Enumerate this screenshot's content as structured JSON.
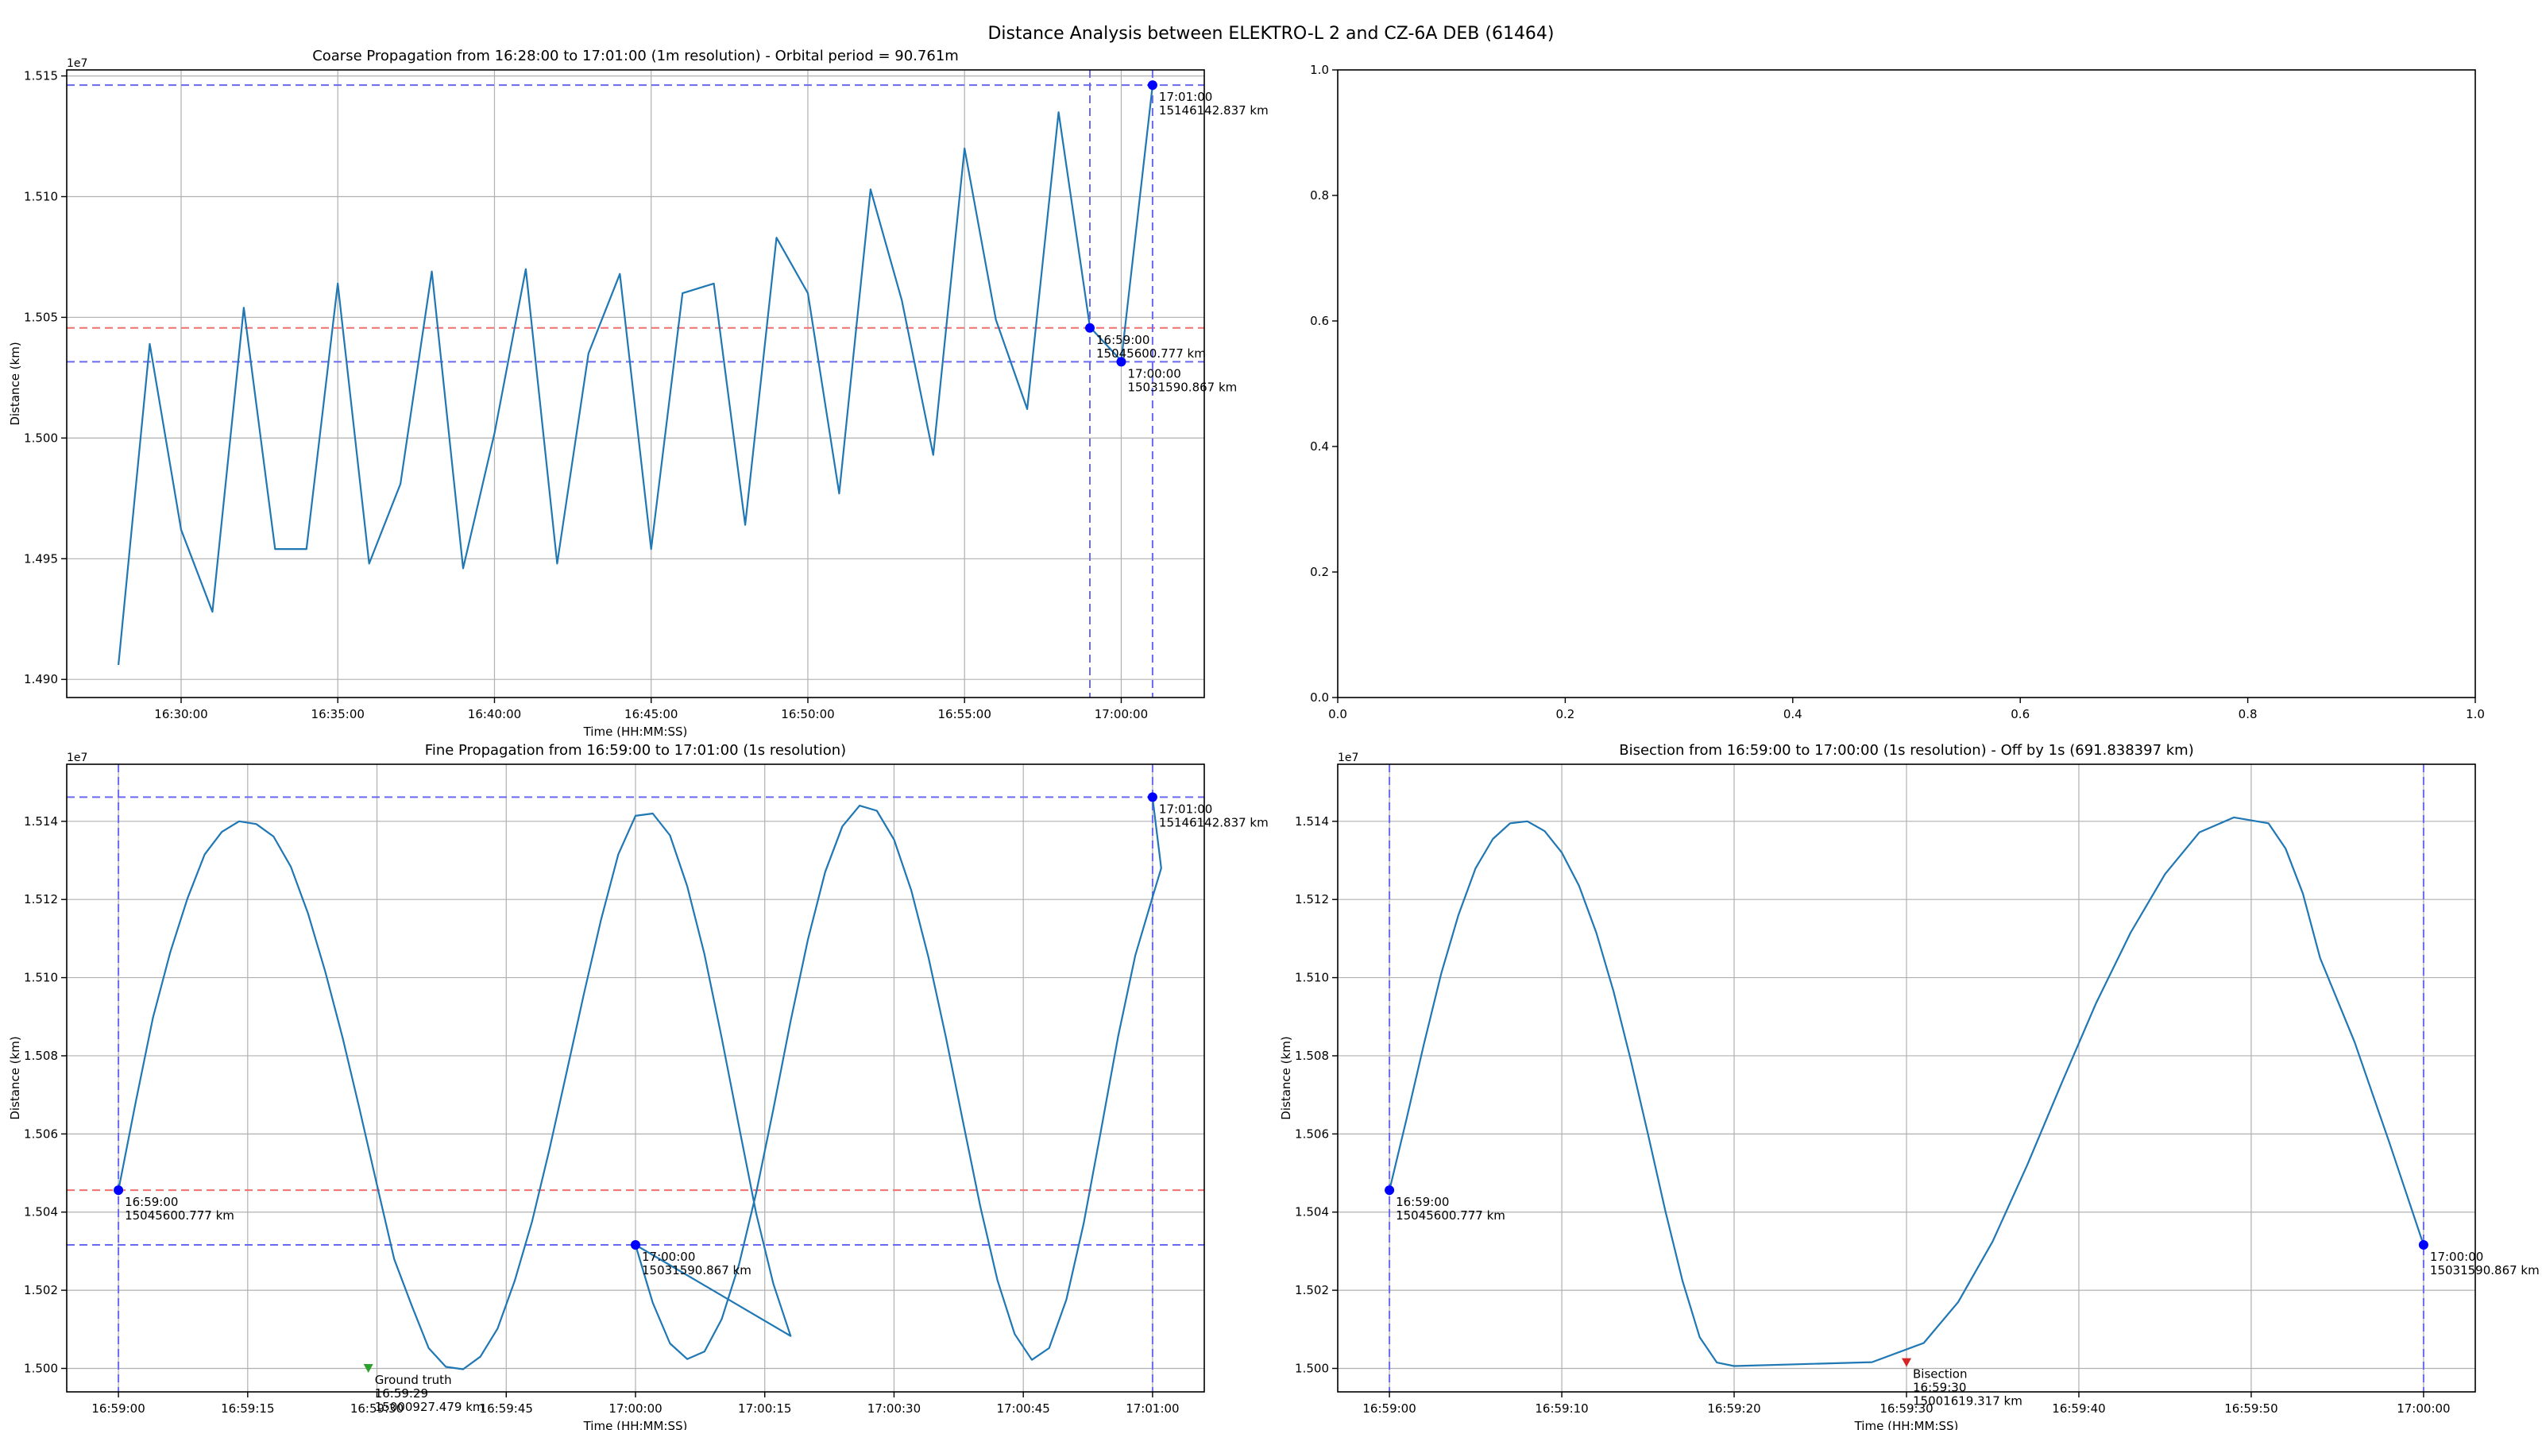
{
  "figure_title": "Distance Analysis between ELEKTRO-L 2 and CZ-6A DEB (61464)",
  "colors": {
    "line": "#1f77b4",
    "marker": "#0000ff",
    "guide_blue": "#6a6af0",
    "guide_red": "#f07070",
    "ground_truth": "#2ca02c",
    "bisection": "#d62728",
    "grid": "#b0b0b0"
  },
  "chart_data": [
    {
      "id": "coarse",
      "type": "line",
      "title": "Coarse Propagation from 16:28:00 to 17:01:00 (1m resolution) - Orbital period = 90.761m",
      "xlabel": "Time (HH:MM:SS)",
      "ylabel": "Distance (km)",
      "offset_label": "1e7",
      "xlim": [
        -1.65,
        34.65
      ],
      "ylim": [
        14.8925,
        15.1525
      ],
      "x_unit": "minutes after 16:28:00",
      "xticks": [
        2,
        7,
        12,
        17,
        22,
        27,
        32
      ],
      "xticklabels": [
        "16:30:00",
        "16:35:00",
        "16:40:00",
        "16:45:00",
        "16:50:00",
        "16:55:00",
        "17:00:00"
      ],
      "yticks": [
        14.9,
        14.95,
        15.0,
        15.05,
        15.1,
        15.15
      ],
      "yticklabels": [
        "1.490",
        "1.495",
        "1.500",
        "1.505",
        "1.510",
        "1.515"
      ],
      "series": [
        {
          "values": [
            14.906,
            15.039,
            14.962,
            14.928,
            15.054,
            14.954,
            14.954,
            15.064,
            14.948,
            14.981,
            15.069,
            14.946,
            15.002,
            15.07,
            14.948,
            15.035,
            15.068,
            14.954,
            15.06,
            15.064,
            14.964,
            15.083,
            15.06,
            14.977,
            15.103,
            15.057,
            14.993,
            15.12,
            15.049,
            15.012,
            15.135,
            15.046,
            15.032,
            15.146
          ]
        }
      ],
      "hlines": [
        {
          "y": 15.1462,
          "color": "blue"
        },
        {
          "y": 15.0456,
          "color": "red"
        },
        {
          "y": 15.0316,
          "color": "blue"
        }
      ],
      "vlines": [
        31,
        33
      ],
      "points": [
        {
          "x": 31,
          "y": 15.0456,
          "color": "blue",
          "labels": [
            "16:59:00",
            "15045600.777 km"
          ]
        },
        {
          "x": 32,
          "y": 15.0316,
          "color": "blue",
          "labels": [
            "17:00:00",
            "15031590.867 km"
          ]
        },
        {
          "x": 33,
          "y": 15.1462,
          "color": "blue",
          "labels": [
            "17:01:00",
            "15146142.837 km"
          ]
        }
      ]
    },
    {
      "id": "empty",
      "type": "line",
      "title": "",
      "xlim": [
        0,
        1
      ],
      "ylim": [
        0,
        1
      ],
      "xticks": [
        0,
        0.2,
        0.4,
        0.6,
        0.8,
        1.0
      ],
      "xticklabels": [
        "0.0",
        "0.2",
        "0.4",
        "0.6",
        "0.8",
        "1.0"
      ],
      "yticks": [
        0,
        0.2,
        0.4,
        0.6,
        0.8,
        1.0
      ],
      "yticklabels": [
        "0.0",
        "0.2",
        "0.4",
        "0.6",
        "0.8",
        "1.0"
      ],
      "grid": false
    },
    {
      "id": "fine",
      "type": "line",
      "title": "Fine Propagation from 16:59:00 to 17:01:00 (1s resolution)",
      "xlabel": "Time (HH:MM:SS)",
      "ylabel": "Distance (km)",
      "offset_label": "1e7",
      "x_unit": "seconds after 16:59:00",
      "xlim": [
        -6,
        126
      ],
      "ylim": [
        14.994,
        15.1546
      ],
      "xticks": [
        0,
        15,
        30,
        45,
        60,
        75,
        90,
        105,
        120
      ],
      "xticklabels": [
        "16:59:00",
        "16:59:15",
        "16:59:30",
        "16:59:45",
        "17:00:00",
        "17:00:15",
        "17:00:30",
        "17:00:45",
        "17:01:00"
      ],
      "yticks": [
        15.0,
        15.02,
        15.04,
        15.06,
        15.08,
        15.1,
        15.12,
        15.14
      ],
      "yticklabels": [
        "1.500",
        "1.502",
        "1.504",
        "1.506",
        "1.508",
        "1.510",
        "1.512",
        "1.514"
      ],
      "series": [
        {
          "values": [
            15.0456,
            15.0681,
            15.0897,
            15.1064,
            15.1202,
            15.1315,
            15.1373,
            15.14,
            15.1393,
            15.1361,
            15.1284,
            15.1164,
            15.1015,
            15.0847,
            15.0662,
            15.047,
            15.028,
            15.0163,
            15.0052,
            15.0004,
            14.9998,
            15.003,
            15.0102,
            15.0225,
            15.0376,
            15.0559,
            15.0757,
            15.0957,
            15.1148,
            15.1315,
            15.1414,
            15.142,
            15.1364,
            15.1234,
            15.106,
            15.0846,
            15.062,
            15.0397,
            15.0216,
            15.0083,
            15.0316,
            15.0168,
            15.0064,
            15.0024,
            15.0043,
            15.0126,
            15.0265,
            15.0449,
            15.0664,
            15.0889,
            15.1097,
            15.127,
            15.1387,
            15.144,
            15.1427,
            15.1353,
            15.1223,
            15.1052,
            15.085,
            15.0632,
            15.0416,
            15.0226,
            15.0088,
            15.0022,
            15.0052,
            15.0176,
            15.037,
            15.0607,
            15.0849,
            15.1057,
            15.1206,
            15.128,
            15.146
          ]
        }
      ],
      "series_x": [
        0,
        2,
        4,
        6,
        8,
        10,
        12,
        14,
        16,
        18,
        20,
        22,
        24,
        26,
        28,
        30,
        32,
        34,
        36,
        38,
        40,
        42,
        44,
        46,
        48,
        50,
        52,
        54,
        56,
        58,
        60,
        62,
        64,
        66,
        68,
        70,
        72,
        74,
        76,
        78,
        60,
        62,
        64,
        66,
        68,
        70,
        72,
        74,
        76,
        78,
        80,
        82,
        84,
        86,
        88,
        90,
        92,
        94,
        96,
        98,
        100,
        102,
        104,
        106,
        108,
        110,
        112,
        114,
        116,
        118,
        120,
        121,
        120
      ],
      "hlines": [
        {
          "y": 15.1462,
          "color": "blue"
        },
        {
          "y": 15.0456,
          "color": "red"
        },
        {
          "y": 15.0316,
          "color": "blue"
        }
      ],
      "vlines": [
        0,
        120
      ],
      "points": [
        {
          "x": 0,
          "y": 15.0456,
          "color": "blue",
          "labels": [
            "16:59:00",
            "15045600.777 km"
          ]
        },
        {
          "x": 60,
          "y": 15.0316,
          "color": "blue",
          "labels": [
            "17:00:00",
            "15031590.867 km"
          ]
        },
        {
          "x": 120,
          "y": 15.1462,
          "color": "blue",
          "labels": [
            "17:01:00",
            "15146142.837 km"
          ]
        },
        {
          "x": 29,
          "y": 15.0001,
          "color": "green",
          "shape": "triangle-down",
          "labels": [
            "Ground truth",
            "16:59:29",
            "15000927.479 km"
          ]
        }
      ]
    },
    {
      "id": "bisection",
      "type": "line",
      "title": "Bisection from 16:59:00 to 17:00:00 (1s resolution) - Off by 1s (691.838397 km)",
      "xlabel": "Time (HH:MM:SS)",
      "ylabel": "Distance (km)",
      "offset_label": "1e7",
      "x_unit": "seconds after 16:59:00",
      "xlim": [
        -3,
        63
      ],
      "ylim": [
        14.994,
        15.1546
      ],
      "xticks": [
        0,
        10,
        20,
        30,
        40,
        50,
        60
      ],
      "xticklabels": [
        "16:59:00",
        "16:59:10",
        "16:59:20",
        "16:59:30",
        "16:59:40",
        "16:59:50",
        "17:00:00"
      ],
      "yticks": [
        15.0,
        15.02,
        15.04,
        15.06,
        15.08,
        15.1,
        15.12,
        15.14
      ],
      "yticklabels": [
        "1.500",
        "1.502",
        "1.504",
        "1.506",
        "1.508",
        "1.510",
        "1.512",
        "1.514"
      ],
      "series": [
        {
          "values": [
            15.0456,
            15.064,
            15.083,
            15.101,
            15.116,
            15.128,
            15.1355,
            15.1395,
            15.14,
            15.1375,
            15.132,
            15.1235,
            15.1115,
            15.0965,
            15.079,
            15.06,
            15.0405,
            15.0225,
            15.008,
            15.0015,
            15.0006,
            15.0016,
            15.0065,
            15.017,
            15.0325,
            15.052,
            15.073,
            15.0935,
            15.1115,
            15.1265,
            15.1372,
            15.141,
            15.1395,
            15.133,
            15.1215,
            15.105,
            15.0835,
            15.058,
            15.0316
          ]
        }
      ],
      "series_x": [
        0,
        1,
        2,
        3,
        4,
        5,
        6,
        7,
        8,
        9,
        10,
        11,
        12,
        13,
        14,
        15,
        16,
        17,
        18,
        19,
        20,
        28,
        31,
        33,
        35,
        37,
        39,
        41,
        43,
        45,
        47,
        49,
        51,
        52,
        53,
        54,
        56,
        58,
        60
      ],
      "vlines": [
        0,
        60
      ],
      "points": [
        {
          "x": 0,
          "y": 15.0456,
          "color": "blue",
          "labels": [
            "16:59:00",
            "15045600.777 km"
          ]
        },
        {
          "x": 60,
          "y": 15.0316,
          "color": "blue",
          "labels": [
            "17:00:00",
            "15031590.867 km"
          ]
        },
        {
          "x": 30,
          "y": 15.0016,
          "color": "red",
          "shape": "triangle-down",
          "labels": [
            "Bisection",
            "16:59:30",
            "15001619.317 km"
          ]
        }
      ]
    }
  ]
}
